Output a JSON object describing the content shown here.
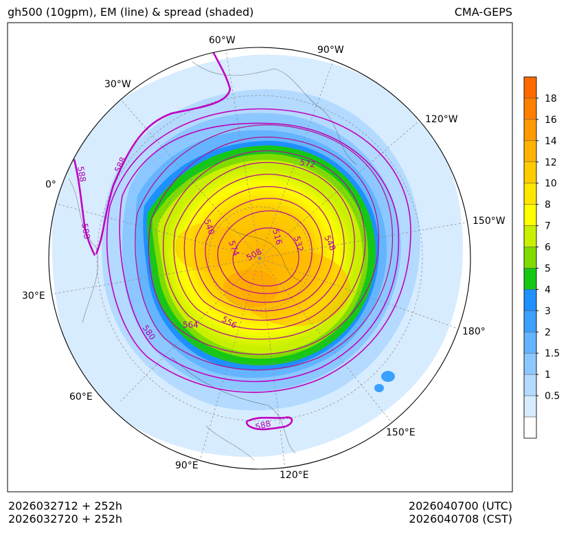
{
  "title": {
    "left": "gh500 (10gpm), EM (line) & spread (shaded)",
    "right": "CMA-GEPS"
  },
  "footer": {
    "init_utc": "2026032712 + 252h",
    "init_cst": "2026032720 + 252h",
    "valid_utc": "2026040700 (UTC)",
    "valid_cst": "2026040708 (CST)"
  },
  "map": {
    "projection": "north-polar-stereographic",
    "longitude_labels": [
      "60°W",
      "90°W",
      "30°W",
      "120°W",
      "0°",
      "150°W",
      "30°E",
      "180°",
      "60°E",
      "150°E",
      "90°E",
      "120°E"
    ],
    "contour_labels": [
      "572",
      "588",
      "588",
      "588",
      "540",
      "516",
      "532",
      "548",
      "574",
      "508",
      "564",
      "556",
      "580",
      "588"
    ]
  },
  "colorbar": {
    "ticks": [
      "18",
      "16",
      "14",
      "12",
      "10",
      "8",
      "7",
      "6",
      "5",
      "4",
      "3",
      "2",
      "1.5",
      "1",
      "0.5"
    ],
    "colors": [
      "#ff6a00",
      "#ff8000",
      "#ff9a00",
      "#ffb300",
      "#ffcc00",
      "#ffe600",
      "#ffff00",
      "#c8f000",
      "#80dc00",
      "#14c814",
      "#1e90ff",
      "#3ca0ff",
      "#64b4ff",
      "#8cc8ff",
      "#b4daff",
      "#d7ecff",
      "#ffffff"
    ]
  },
  "colors": {
    "contour_main": "#b4148c",
    "contour_bold": "#c000c0",
    "label": "#b000b0"
  }
}
